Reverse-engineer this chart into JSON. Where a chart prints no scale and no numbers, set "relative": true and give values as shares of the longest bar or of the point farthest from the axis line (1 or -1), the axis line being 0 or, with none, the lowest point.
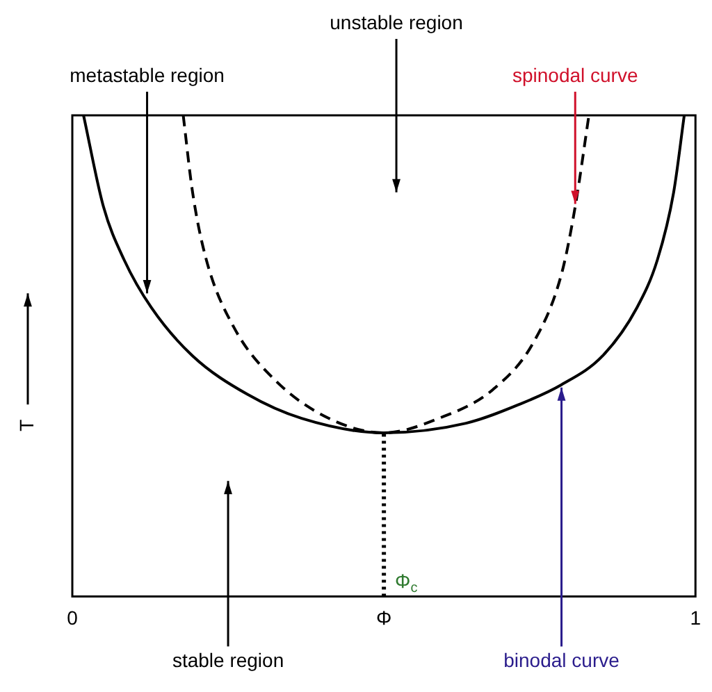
{
  "chart_data": {
    "type": "line",
    "relative": true,
    "ylabel": "T",
    "xlim": [
      0,
      1
    ],
    "xticks": [
      0,
      {
        "value": 0.5,
        "label": "Φ"
      },
      1
    ],
    "grid": false,
    "legend": false,
    "marker": "none",
    "series": [
      {
        "name": "binodal curve",
        "color": "#000000",
        "line_style": "solid",
        "x": [
          0.018,
          0.05,
          0.083,
          0.127,
          0.193,
          0.281,
          0.368,
          0.5,
          0.632,
          0.719,
          0.785,
          0.851,
          0.906,
          0.939,
          0.965,
          0.982
        ],
        "values": [
          1.0,
          0.81,
          0.7,
          0.6,
          0.5,
          0.42,
          0.37,
          0.34,
          0.36,
          0.4,
          0.44,
          0.5,
          0.6,
          0.7,
          0.84,
          1.0
        ]
      },
      {
        "name": "spinodal curve",
        "color": "#000000",
        "line_style": "dashed",
        "x": [
          0.178,
          0.193,
          0.215,
          0.259,
          0.325,
          0.412,
          0.5,
          0.588,
          0.675,
          0.741,
          0.785,
          0.807,
          0.829
        ],
        "values": [
          1.0,
          0.84,
          0.7,
          0.56,
          0.45,
          0.37,
          0.34,
          0.37,
          0.43,
          0.53,
          0.67,
          0.81,
          1.0
        ]
      }
    ],
    "ref_lines": [
      {
        "axis": "x",
        "value": 0.5,
        "label": "Φ$_{c}$",
        "color": "#000000",
        "line_style": "dotted"
      }
    ],
    "annotations": [
      "unstable region",
      "metastable region",
      "stable region"
    ]
  }
}
